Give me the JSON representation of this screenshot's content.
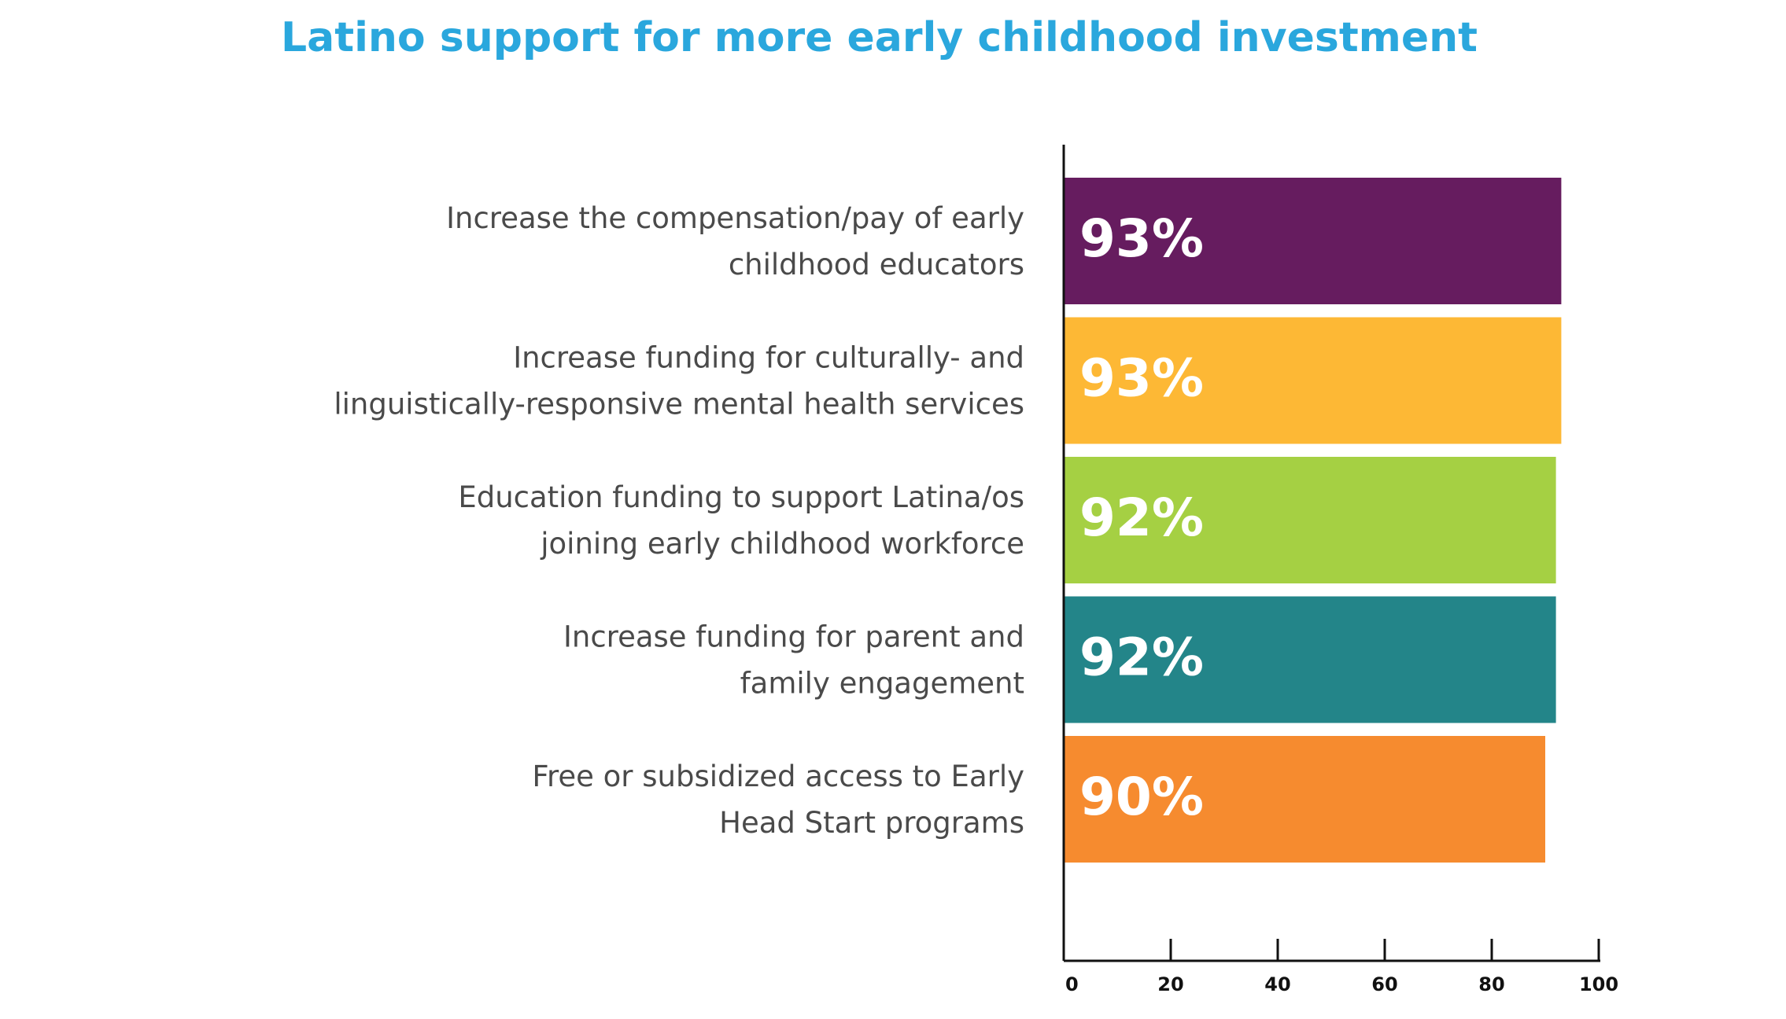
{
  "chart_data": {
    "type": "bar",
    "orientation": "horizontal",
    "title": "Latino support for more early childhood investment",
    "categories": [
      [
        "Increase the compensation/pay of early",
        "childhood educators"
      ],
      [
        "Increase funding for culturally- and",
        "linguistically-responsive mental health services"
      ],
      [
        "Education funding to support Latina/os",
        "joining early childhood workforce"
      ],
      [
        "Increase funding for parent and",
        "family engagement"
      ],
      [
        "Free or subsidized access to Early",
        "Head Start programs"
      ]
    ],
    "values": [
      93,
      93,
      92,
      92,
      90
    ],
    "value_labels": [
      "93%",
      "93%",
      "92%",
      "92%",
      "90%"
    ],
    "colors": [
      "#661c5f",
      "#fdb835",
      "#a5d043",
      "#238589",
      "#f68b2f"
    ],
    "xlim": [
      0,
      100
    ],
    "xticks": [
      0,
      20,
      40,
      60,
      80,
      100
    ],
    "xtick_labels": [
      "0",
      "20",
      "40",
      "60",
      "80",
      "100"
    ],
    "grid": false,
    "legend": "none"
  }
}
